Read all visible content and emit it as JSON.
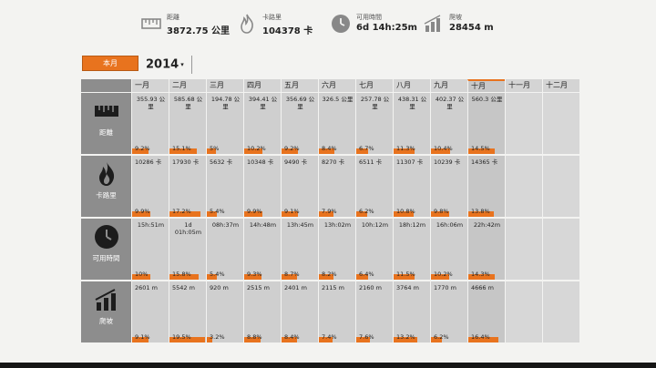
{
  "summary": [
    {
      "icon": "ruler-icon",
      "label": "距離",
      "value": "3872.75 公里"
    },
    {
      "icon": "flame-icon",
      "label": "卡路里",
      "value": "104378 卡"
    },
    {
      "icon": "clock-icon",
      "label": "可用時間",
      "value": "6d 14h:25m"
    },
    {
      "icon": "bar-chart-icon",
      "label": "爬坡",
      "value": "28454 m"
    }
  ],
  "controls": {
    "month_button": "本月",
    "year": "2014"
  },
  "months": [
    "一月",
    "二月",
    "三月",
    "四月",
    "五月",
    "六月",
    "七月",
    "八月",
    "九月",
    "十月",
    "十一月",
    "十二月"
  ],
  "current_month_index": 9,
  "colors": {
    "accent": "#e8731e",
    "row_header": "#8d8d8d",
    "cell": "#cfcfcf"
  },
  "rows": [
    {
      "key": "distance",
      "icon": "ruler-icon",
      "label": "距離",
      "values": [
        "355.93 公里",
        "585.68 公里",
        "194.78 公里",
        "394.41 公里",
        "356.69 公里",
        "326.5 公里",
        "257.78 公里",
        "438.31 公里",
        "402.37 公里",
        "560.3 公里",
        "",
        ""
      ],
      "percents": [
        "9.2%",
        "15.1%",
        "5%",
        "10.2%",
        "9.2%",
        "8.4%",
        "6.7%",
        "11.3%",
        "10.4%",
        "14.5%",
        "",
        ""
      ],
      "fractions": [
        0.092,
        0.151,
        0.05,
        0.102,
        0.092,
        0.084,
        0.067,
        0.113,
        0.104,
        0.145,
        0,
        0
      ]
    },
    {
      "key": "calories",
      "icon": "flame-icon",
      "label": "卡路里",
      "values": [
        "10286 卡",
        "17930 卡",
        "5632 卡",
        "10348 卡",
        "9490 卡",
        "8270 卡",
        "6511 卡",
        "11307 卡",
        "10239 卡",
        "14365 卡",
        "",
        ""
      ],
      "percents": [
        "9.9%",
        "17.2%",
        "5.4%",
        "9.9%",
        "9.1%",
        "7.9%",
        "6.2%",
        "10.8%",
        "9.8%",
        "13.8%",
        "",
        ""
      ],
      "fractions": [
        0.099,
        0.172,
        0.054,
        0.099,
        0.091,
        0.079,
        0.062,
        0.108,
        0.098,
        0.138,
        0,
        0
      ]
    },
    {
      "key": "time",
      "icon": "clock-icon",
      "label": "可用時間",
      "values": [
        "15h:51m",
        "1d 01h:05m",
        "08h:37m",
        "14h:48m",
        "13h:45m",
        "13h:02m",
        "10h:12m",
        "18h:12m",
        "16h:06m",
        "22h:42m",
        "",
        ""
      ],
      "percents": [
        "10%",
        "15.8%",
        "5.4%",
        "9.3%",
        "8.7%",
        "8.2%",
        "6.4%",
        "11.5%",
        "10.2%",
        "14.3%",
        "",
        ""
      ],
      "fractions": [
        0.1,
        0.158,
        0.054,
        0.093,
        0.087,
        0.082,
        0.064,
        0.115,
        0.102,
        0.143,
        0,
        0
      ]
    },
    {
      "key": "climb",
      "icon": "bar-chart-icon",
      "label": "爬坡",
      "values": [
        "2601 m",
        "5542 m",
        "920 m",
        "2515 m",
        "2401 m",
        "2115 m",
        "2160 m",
        "3764 m",
        "1770 m",
        "4666 m",
        "",
        ""
      ],
      "percents": [
        "9.1%",
        "19.5%",
        "3.2%",
        "8.8%",
        "8.4%",
        "7.4%",
        "7.6%",
        "13.2%",
        "6.2%",
        "16.4%",
        "",
        ""
      ],
      "fractions": [
        0.091,
        0.195,
        0.032,
        0.088,
        0.084,
        0.074,
        0.076,
        0.132,
        0.062,
        0.164,
        0,
        0
      ]
    }
  ]
}
